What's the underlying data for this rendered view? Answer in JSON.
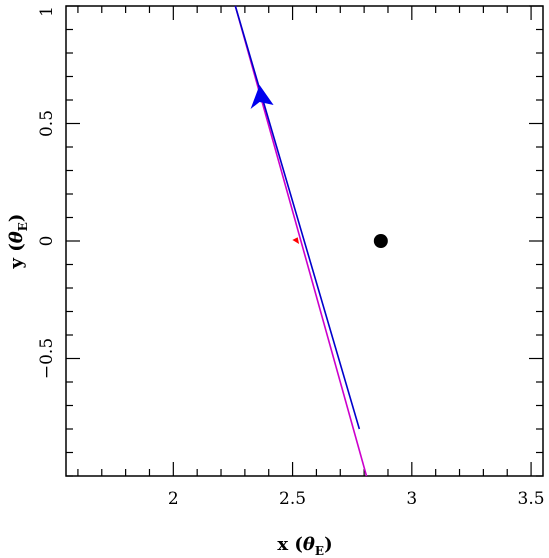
{
  "chart_data": {
    "type": "line",
    "title": "",
    "xlabel": {
      "main": "x (",
      "greek": "θ",
      "sub": "E",
      "close": ")"
    },
    "ylabel": {
      "main": "y (",
      "greek": "θ",
      "sub": "E",
      "close": ")"
    },
    "xlim": [
      1.55,
      3.55
    ],
    "ylim": [
      -1.0,
      1.0
    ],
    "x_ticks": [
      {
        "value": 2,
        "label": "2"
      },
      {
        "value": 2.5,
        "label": "2.5"
      },
      {
        "value": 3,
        "label": "3"
      },
      {
        "value": 3.5,
        "label": "3.5"
      }
    ],
    "y_ticks": [
      {
        "value": -0.5,
        "label": "−0.5"
      },
      {
        "value": 0,
        "label": "0"
      },
      {
        "value": 0.5,
        "label": "0.5"
      },
      {
        "value": 1,
        "label": "1"
      }
    ],
    "x_minor_step": 0.1,
    "y_minor_step": 0.1,
    "series": [
      {
        "color": "#cc00cc",
        "x": [
          2.26,
          2.81
        ],
        "y": [
          1.0,
          -1.0
        ]
      },
      {
        "color": "#0000cc",
        "x": [
          2.26,
          2.78
        ],
        "y": [
          1.0,
          -0.8
        ]
      }
    ],
    "arrow": {
      "x": 2.37,
      "y": 0.6,
      "color": "#0000ee",
      "direction": "up-left"
    },
    "point_lens": {
      "x": 2.87,
      "y": 0.0,
      "color": "#000000"
    },
    "caustic_mark": {
      "x": 2.52,
      "y": 0.0,
      "color": "#ff0000"
    },
    "grid": false,
    "legend": "none"
  }
}
